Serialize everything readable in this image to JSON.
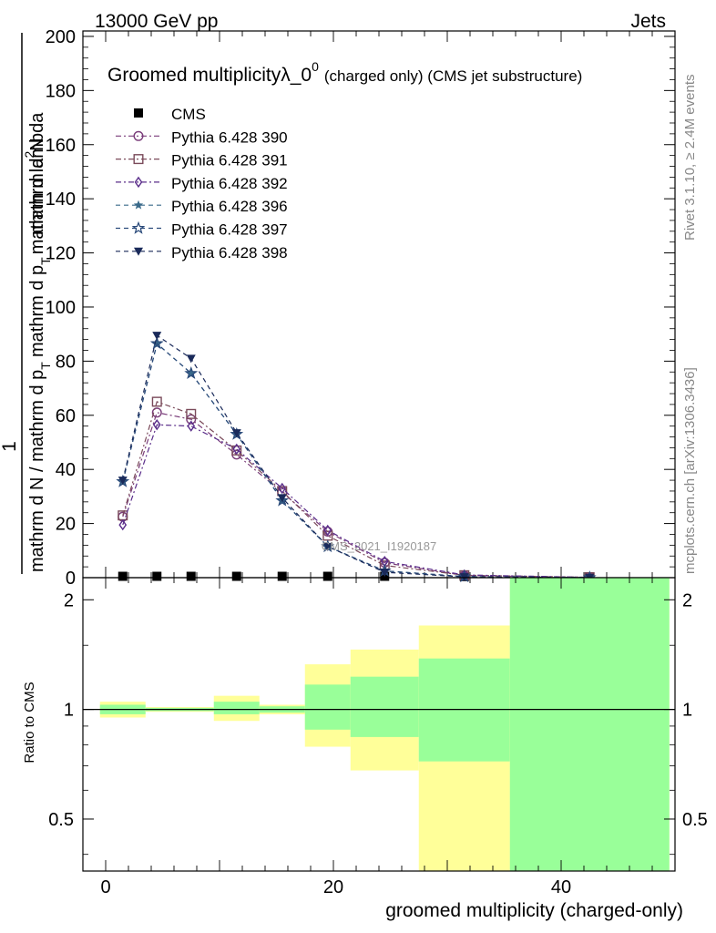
{
  "header": {
    "left": "13000 GeV pp",
    "right": "Jets"
  },
  "side": {
    "rivet": "Rivet 3.1.10, ≥ 2.4M events",
    "mcplots": "mcplots.cern.ch [arXiv:1306.3436]"
  },
  "watermark": "CMS_2021_I1920187",
  "chart_data": [
    {
      "type": "line",
      "title_main": "Groomed multiplicityλ_0",
      "title_sup": "0",
      "title_tail": "(charged only) (CMS jet substructure)",
      "ylabel_parts": [
        "1",
        "mathrm d N / mathrm d p",
        "T",
        "mathrm d p",
        "T",
        "mathrm d lambda",
        "mathrm d",
        "2",
        "N"
      ],
      "ylabel_text": "1 / (mathrm d N / mathrm d p_T) · mathrm d^2 N / (mathrm d p_T mathrm d lambda)",
      "xlim": [
        -2,
        50
      ],
      "ylim": [
        0,
        202
      ],
      "yticks": [
        0,
        20,
        40,
        60,
        80,
        100,
        120,
        140,
        160,
        180,
        200
      ],
      "x": [
        1.5,
        4.5,
        7.5,
        11.5,
        15.5,
        19.5,
        24.5,
        31.5,
        42.5
      ],
      "series": [
        {
          "name": "CMS",
          "color": "#000000",
          "marker": "square",
          "values": [
            0.5,
            0.5,
            0.5,
            0.5,
            0.5,
            0.5,
            0.5,
            0.4,
            0.3
          ]
        },
        {
          "name": "Pythia 6.428 390",
          "color": "#7a3d7a",
          "marker": "circle",
          "dash": "dashdot",
          "values": [
            22.5,
            61,
            58.5,
            45.5,
            31.5,
            17,
            5.5,
            0.8,
            0.1
          ]
        },
        {
          "name": "Pythia 6.428 391",
          "color": "#7a4a5a",
          "marker": "open-square",
          "dash": "dashdot",
          "values": [
            23,
            65,
            60.5,
            47,
            32,
            15.5,
            4.5,
            0.9,
            0.15
          ]
        },
        {
          "name": "Pythia 6.428 392",
          "color": "#5a2d8a",
          "marker": "diamond",
          "dash": "dashdot",
          "values": [
            19.5,
            56.5,
            56,
            47.5,
            33,
            17.5,
            6,
            1,
            0.1
          ]
        },
        {
          "name": "Pythia 6.428 396",
          "color": "#3a6a8a",
          "marker": "star-filled",
          "dash": "dashed",
          "values": [
            35.5,
            86.5,
            75.5,
            53,
            28.5,
            11.5,
            2.5,
            0.4,
            0.05
          ]
        },
        {
          "name": "Pythia 6.428 397",
          "color": "#2a4a7a",
          "marker": "open-star",
          "dash": "dashed",
          "values": [
            35.5,
            86.5,
            75.5,
            53,
            28.5,
            11.5,
            2.5,
            0.4,
            0.05
          ]
        },
        {
          "name": "Pythia 6.428 398",
          "color": "#1a2a5a",
          "marker": "triangle-down",
          "dash": "dashed",
          "values": [
            36,
            89.5,
            81,
            53.5,
            29.5,
            11.5,
            2,
            0.3,
            0.05
          ]
        }
      ],
      "legend": "top-left"
    },
    {
      "type": "area",
      "ylabel": "Ratio to CMS",
      "xlabel": "groomed multiplicity (charged-only)",
      "xlim": [
        -2,
        50
      ],
      "ylim": [
        0.36,
        2.3
      ],
      "yticks": [
        0.5,
        1,
        2
      ],
      "xticks": [
        0,
        20,
        40
      ],
      "reference_line": 1,
      "bins": [
        {
          "lo": -0.5,
          "hi": 3.5,
          "green": [
            0.97,
            1.03
          ],
          "yellow": [
            0.95,
            1.05
          ]
        },
        {
          "lo": 3.5,
          "hi": 9.5,
          "green": [
            0.99,
            1.01
          ],
          "yellow": [
            0.985,
            1.015
          ]
        },
        {
          "lo": 9.5,
          "hi": 13.5,
          "green": [
            0.97,
            1.05
          ],
          "yellow": [
            0.93,
            1.09
          ]
        },
        {
          "lo": 13.5,
          "hi": 17.5,
          "green": [
            0.98,
            1.02
          ],
          "yellow": [
            0.97,
            1.03
          ]
        },
        {
          "lo": 17.5,
          "hi": 21.5,
          "green": [
            0.88,
            1.17
          ],
          "yellow": [
            0.79,
            1.33
          ]
        },
        {
          "lo": 21.5,
          "hi": 27.5,
          "green": [
            0.84,
            1.23
          ],
          "yellow": [
            0.68,
            1.46
          ]
        },
        {
          "lo": 27.5,
          "hi": 35.5,
          "green": [
            0.72,
            1.38
          ],
          "yellow": [
            0.36,
            1.7
          ]
        },
        {
          "lo": 35.5,
          "hi": 49.5,
          "green": [
            0.36,
            2.3
          ],
          "yellow": [
            0.36,
            2.3
          ]
        }
      ],
      "colors": {
        "green": "#99ff99",
        "yellow": "#ffff99"
      }
    }
  ]
}
